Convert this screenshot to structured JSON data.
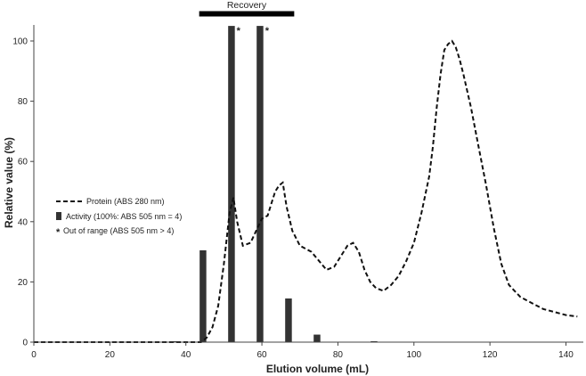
{
  "chart_data": {
    "type": "bar+line",
    "xlabel": "Elution volume (mL)",
    "ylabel": "Relative value (%)",
    "xlim": [
      0,
      145
    ],
    "ylim": [
      0,
      105
    ],
    "x_ticks": [
      0,
      20,
      40,
      60,
      80,
      100,
      120,
      140
    ],
    "y_ticks": [
      0,
      20,
      40,
      60,
      80,
      100
    ],
    "grid": false,
    "legend_position": "middle-left",
    "legend": [
      {
        "label": "Protein (ABS 280 nm)",
        "marker": "dashed-line"
      },
      {
        "label": "Activity (100%: ABS 505 nm = 4)",
        "marker": "bar"
      },
      {
        "label": "Out of range (ABS 505 nm > 4)",
        "marker": "asterisk"
      }
    ],
    "recovery": {
      "label": "Recovery",
      "x_start": 43.5,
      "x_end": 68.5
    },
    "activity_bars": [
      {
        "x": 37,
        "value": 0.3
      },
      {
        "x": 44.5,
        "value": 30.5
      },
      {
        "x": 52,
        "value": 105,
        "out_of_range": true
      },
      {
        "x": 59.5,
        "value": 105,
        "out_of_range": true
      },
      {
        "x": 67,
        "value": 14.5
      },
      {
        "x": 74.5,
        "value": 2.5
      },
      {
        "x": 89.5,
        "value": 0.3
      }
    ],
    "asterisk": "*",
    "protein_series": {
      "name": "Protein (ABS 280 nm)",
      "x": [
        0,
        40,
        44,
        45.5,
        47,
        48.5,
        50,
        51.5,
        52.5,
        53.5,
        55,
        57,
        58.5,
        60,
        61.5,
        62.5,
        63.5,
        64.5,
        65.5,
        66.5,
        68,
        70,
        73,
        75,
        77,
        79,
        81,
        82.5,
        84,
        85.5,
        87,
        88.5,
        90,
        92,
        94,
        96,
        98,
        100,
        102,
        104,
        105,
        106,
        107,
        108,
        109,
        110,
        111,
        112,
        113,
        115,
        117,
        119,
        121,
        123,
        125,
        128,
        131,
        134,
        137,
        140,
        143
      ],
      "y": [
        0,
        0,
        0,
        1.5,
        5,
        12,
        26,
        43,
        48,
        40,
        32,
        33,
        37,
        41,
        42,
        46,
        50,
        52,
        53,
        45,
        37,
        32,
        30,
        27,
        24,
        25,
        29,
        32,
        33,
        30,
        24,
        20,
        18,
        17,
        19,
        22,
        27,
        33,
        43,
        55,
        65,
        78,
        89,
        97,
        99,
        100,
        98,
        94,
        89,
        78,
        65,
        52,
        38,
        26,
        19,
        15,
        13,
        11,
        10,
        9,
        8.5
      ]
    }
  }
}
